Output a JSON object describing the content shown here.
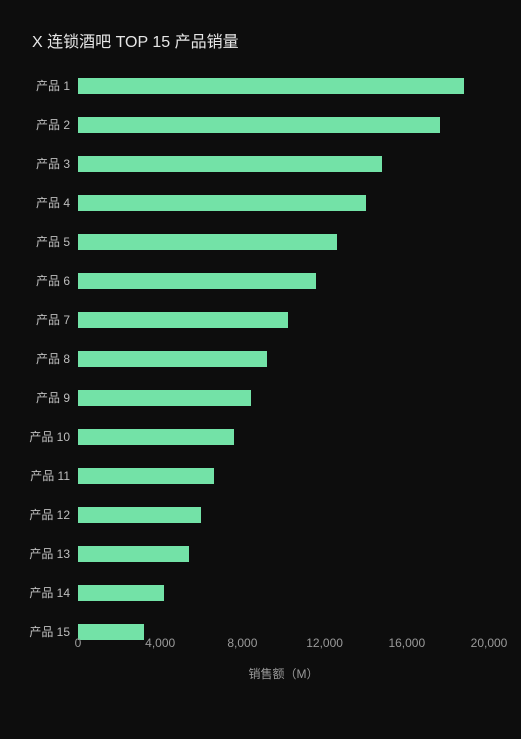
{
  "chart": {
    "type": "bar-horizontal",
    "title": "X 连锁酒吧 TOP 15 产品销量",
    "title_fontsize": 16,
    "title_color": "#e6e6e6",
    "background_color": "#0d0d0d",
    "bar_color": "#73e2a7",
    "label_color": "#bfbfbf",
    "tick_color": "#9a9a9a",
    "axis_label_color": "#9a9a9a",
    "tick_fontsize": 12,
    "label_fontsize": 12,
    "axis_label_fontsize": 12,
    "x_label": "销售额（M）",
    "x_max": 20000,
    "x_ticks": [
      {
        "value": 0,
        "label": "0"
      },
      {
        "value": 4000,
        "label": "4,000"
      },
      {
        "value": 8000,
        "label": "8,000"
      },
      {
        "value": 12000,
        "label": "12,000"
      },
      {
        "value": 16000,
        "label": "16,000"
      },
      {
        "value": 20000,
        "label": "20,000"
      }
    ],
    "bars": [
      {
        "label": "产品 1",
        "value": 18800
      },
      {
        "label": "产品 2",
        "value": 17600
      },
      {
        "label": "产品 3",
        "value": 14800
      },
      {
        "label": "产品 4",
        "value": 14000
      },
      {
        "label": "产品 5",
        "value": 12600
      },
      {
        "label": "产品 6",
        "value": 11600
      },
      {
        "label": "产品 7",
        "value": 10200
      },
      {
        "label": "产品 8",
        "value": 9200
      },
      {
        "label": "产品 9",
        "value": 8400
      },
      {
        "label": "产品 10",
        "value": 7600
      },
      {
        "label": "产品 11",
        "value": 6600
      },
      {
        "label": "产品 12",
        "value": 6000
      },
      {
        "label": "产品 13",
        "value": 5400
      },
      {
        "label": "产品 14",
        "value": 4200
      },
      {
        "label": "产品 15",
        "value": 3200
      }
    ],
    "row_pitch": 39,
    "bars_top_offset": 0
  }
}
